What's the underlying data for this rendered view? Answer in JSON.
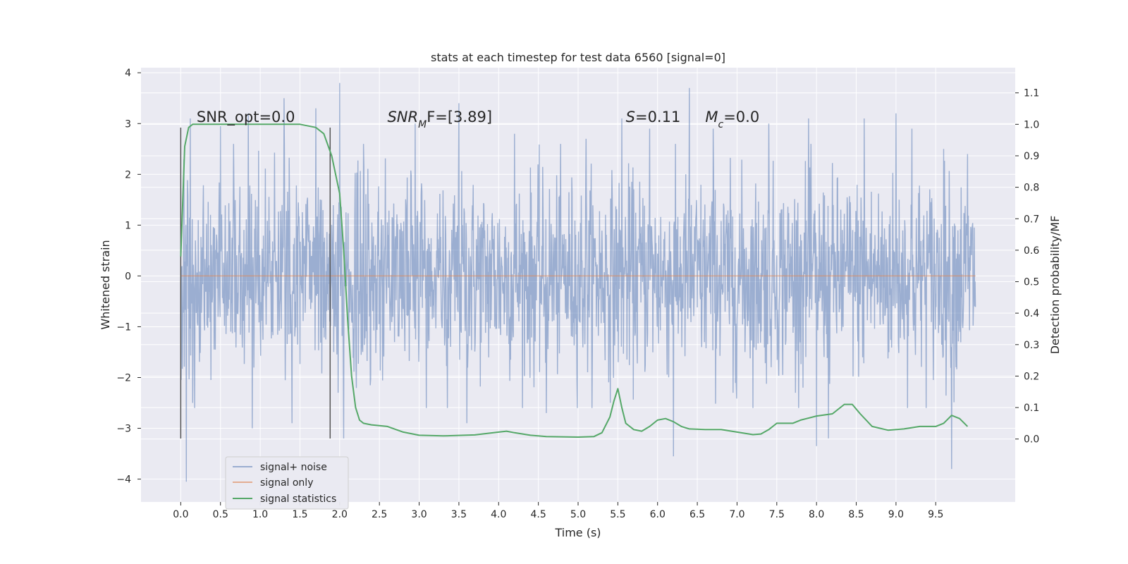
{
  "chart_data": {
    "type": "line",
    "title": "stats at each timestep for test data 6560 [signal=0]",
    "xlabel": "Time (s)",
    "ylabel": "Whitened strain",
    "y2label": "Detection probability/MF",
    "xlim": [
      -0.5,
      10.5
    ],
    "ylim": [
      -4.45,
      4.1
    ],
    "y2lim": [
      -0.2,
      1.18
    ],
    "x_ticks": [
      0.0,
      0.5,
      1.0,
      1.5,
      2.0,
      2.5,
      3.0,
      3.5,
      4.0,
      4.5,
      5.0,
      5.5,
      6.0,
      6.5,
      7.0,
      7.5,
      8.0,
      8.5,
      9.0,
      9.5
    ],
    "x_tick_labels": [
      "0.0",
      "0.5",
      "1.0",
      "1.5",
      "2.0",
      "2.5",
      "3.0",
      "3.5",
      "4.0",
      "4.5",
      "5.0",
      "5.5",
      "6.0",
      "6.5",
      "7.0",
      "7.5",
      "8.0",
      "8.5",
      "9.0",
      "9.5"
    ],
    "y_ticks": [
      -4,
      -3,
      -2,
      -1,
      0,
      1,
      2,
      3,
      4
    ],
    "y_tick_labels": [
      "−4",
      "−3",
      "−2",
      "−1",
      "0",
      "1",
      "2",
      "3",
      "4"
    ],
    "y2_ticks": [
      0.0,
      0.1,
      0.2,
      0.3,
      0.4,
      0.5,
      0.6,
      0.7,
      0.8,
      0.9,
      1.0,
      1.1
    ],
    "y2_tick_labels": [
      "0.0",
      "0.1",
      "0.2",
      "0.3",
      "0.4",
      "0.5",
      "0.6",
      "0.7",
      "0.8",
      "0.9",
      "1.0",
      "1.1"
    ],
    "grid": true,
    "legend_position": "lower-left",
    "series": [
      {
        "name": "signal+ noise",
        "color": "#4c72b0",
        "axis": "left",
        "x_range": [
          0.0,
          10.0
        ],
        "typical_envelope": [
          -1.4,
          1.5
        ],
        "spikes": [
          [
            0.04,
            2.3
          ],
          [
            0.07,
            -4.05
          ],
          [
            0.12,
            3.1
          ],
          [
            0.15,
            -2.5
          ],
          [
            0.5,
            2.95
          ],
          [
            0.85,
            3.2
          ],
          [
            0.9,
            -3.0
          ],
          [
            1.3,
            3.5
          ],
          [
            1.4,
            -2.9
          ],
          [
            1.7,
            3.3
          ],
          [
            1.98,
            -2.3
          ],
          [
            2.0,
            3.8
          ],
          [
            2.05,
            -3.2
          ],
          [
            2.3,
            2.6
          ],
          [
            2.95,
            3.0
          ],
          [
            3.5,
            3.4
          ],
          [
            3.6,
            -2.9
          ],
          [
            4.2,
            2.8
          ],
          [
            4.6,
            -2.7
          ],
          [
            5.1,
            2.7
          ],
          [
            5.55,
            3.1
          ],
          [
            5.9,
            2.9
          ],
          [
            6.2,
            -3.55
          ],
          [
            6.4,
            3.7
          ],
          [
            6.7,
            2.9
          ],
          [
            6.95,
            -2.3
          ],
          [
            7.4,
            3.0
          ],
          [
            7.9,
            3.1
          ],
          [
            8.0,
            -3.35
          ],
          [
            8.15,
            -3.2
          ],
          [
            8.6,
            3.1
          ],
          [
            9.0,
            3.2
          ],
          [
            9.2,
            2.9
          ],
          [
            9.6,
            2.5
          ],
          [
            9.7,
            -3.8
          ],
          [
            9.9,
            2.4
          ]
        ]
      },
      {
        "name": "signal only",
        "color": "#dd8452",
        "axis": "left",
        "x": [
          0.0,
          10.0
        ],
        "y": [
          0.0,
          0.0
        ]
      },
      {
        "name": "signal statistics",
        "color": "#55a868",
        "axis": "right",
        "x": [
          0.0,
          0.05,
          0.1,
          0.15,
          0.2,
          0.4,
          0.8,
          1.2,
          1.5,
          1.7,
          1.8,
          1.9,
          2.0,
          2.05,
          2.1,
          2.15,
          2.2,
          2.25,
          2.3,
          2.4,
          2.6,
          2.8,
          3.0,
          3.3,
          3.7,
          4.0,
          4.1,
          4.2,
          4.4,
          4.6,
          5.0,
          5.2,
          5.3,
          5.4,
          5.45,
          5.5,
          5.55,
          5.6,
          5.7,
          5.8,
          5.9,
          6.0,
          6.1,
          6.2,
          6.3,
          6.4,
          6.6,
          6.8,
          7.0,
          7.2,
          7.3,
          7.4,
          7.5,
          7.6,
          7.7,
          7.8,
          8.0,
          8.2,
          8.35,
          8.45,
          8.55,
          8.7,
          8.9,
          9.1,
          9.3,
          9.5,
          9.6,
          9.7,
          9.8,
          9.9
        ],
        "y": [
          0.58,
          0.93,
          0.99,
          1.0,
          1.0,
          1.0,
          1.0,
          1.0,
          1.0,
          0.99,
          0.97,
          0.9,
          0.78,
          0.6,
          0.38,
          0.2,
          0.1,
          0.06,
          0.05,
          0.045,
          0.04,
          0.022,
          0.012,
          0.01,
          0.013,
          0.022,
          0.025,
          0.02,
          0.012,
          0.008,
          0.006,
          0.008,
          0.02,
          0.07,
          0.12,
          0.16,
          0.1,
          0.05,
          0.03,
          0.025,
          0.04,
          0.06,
          0.065,
          0.055,
          0.04,
          0.032,
          0.03,
          0.03,
          0.022,
          0.014,
          0.016,
          0.03,
          0.05,
          0.05,
          0.05,
          0.06,
          0.073,
          0.08,
          0.11,
          0.11,
          0.08,
          0.04,
          0.028,
          0.032,
          0.04,
          0.04,
          0.05,
          0.075,
          0.065,
          0.04
        ]
      }
    ],
    "vlines": [
      {
        "x": 0.0,
        "ymin": -3.2,
        "ymax": 2.92,
        "color": "#555555"
      },
      {
        "x": 1.88,
        "ymin": -3.2,
        "ymax": 2.92,
        "color": "#555555"
      }
    ],
    "annotations": [
      {
        "text": "SNR_opt=0.0",
        "x": 0.2,
        "y": 3.03
      },
      {
        "text": "SNR_MF=[3.89]",
        "x": 2.6,
        "y": 3.03
      },
      {
        "text": "S=0.11",
        "x": 5.6,
        "y": 3.03
      },
      {
        "text": "M_c=0.0",
        "x": 6.6,
        "y": 3.03
      }
    ]
  }
}
